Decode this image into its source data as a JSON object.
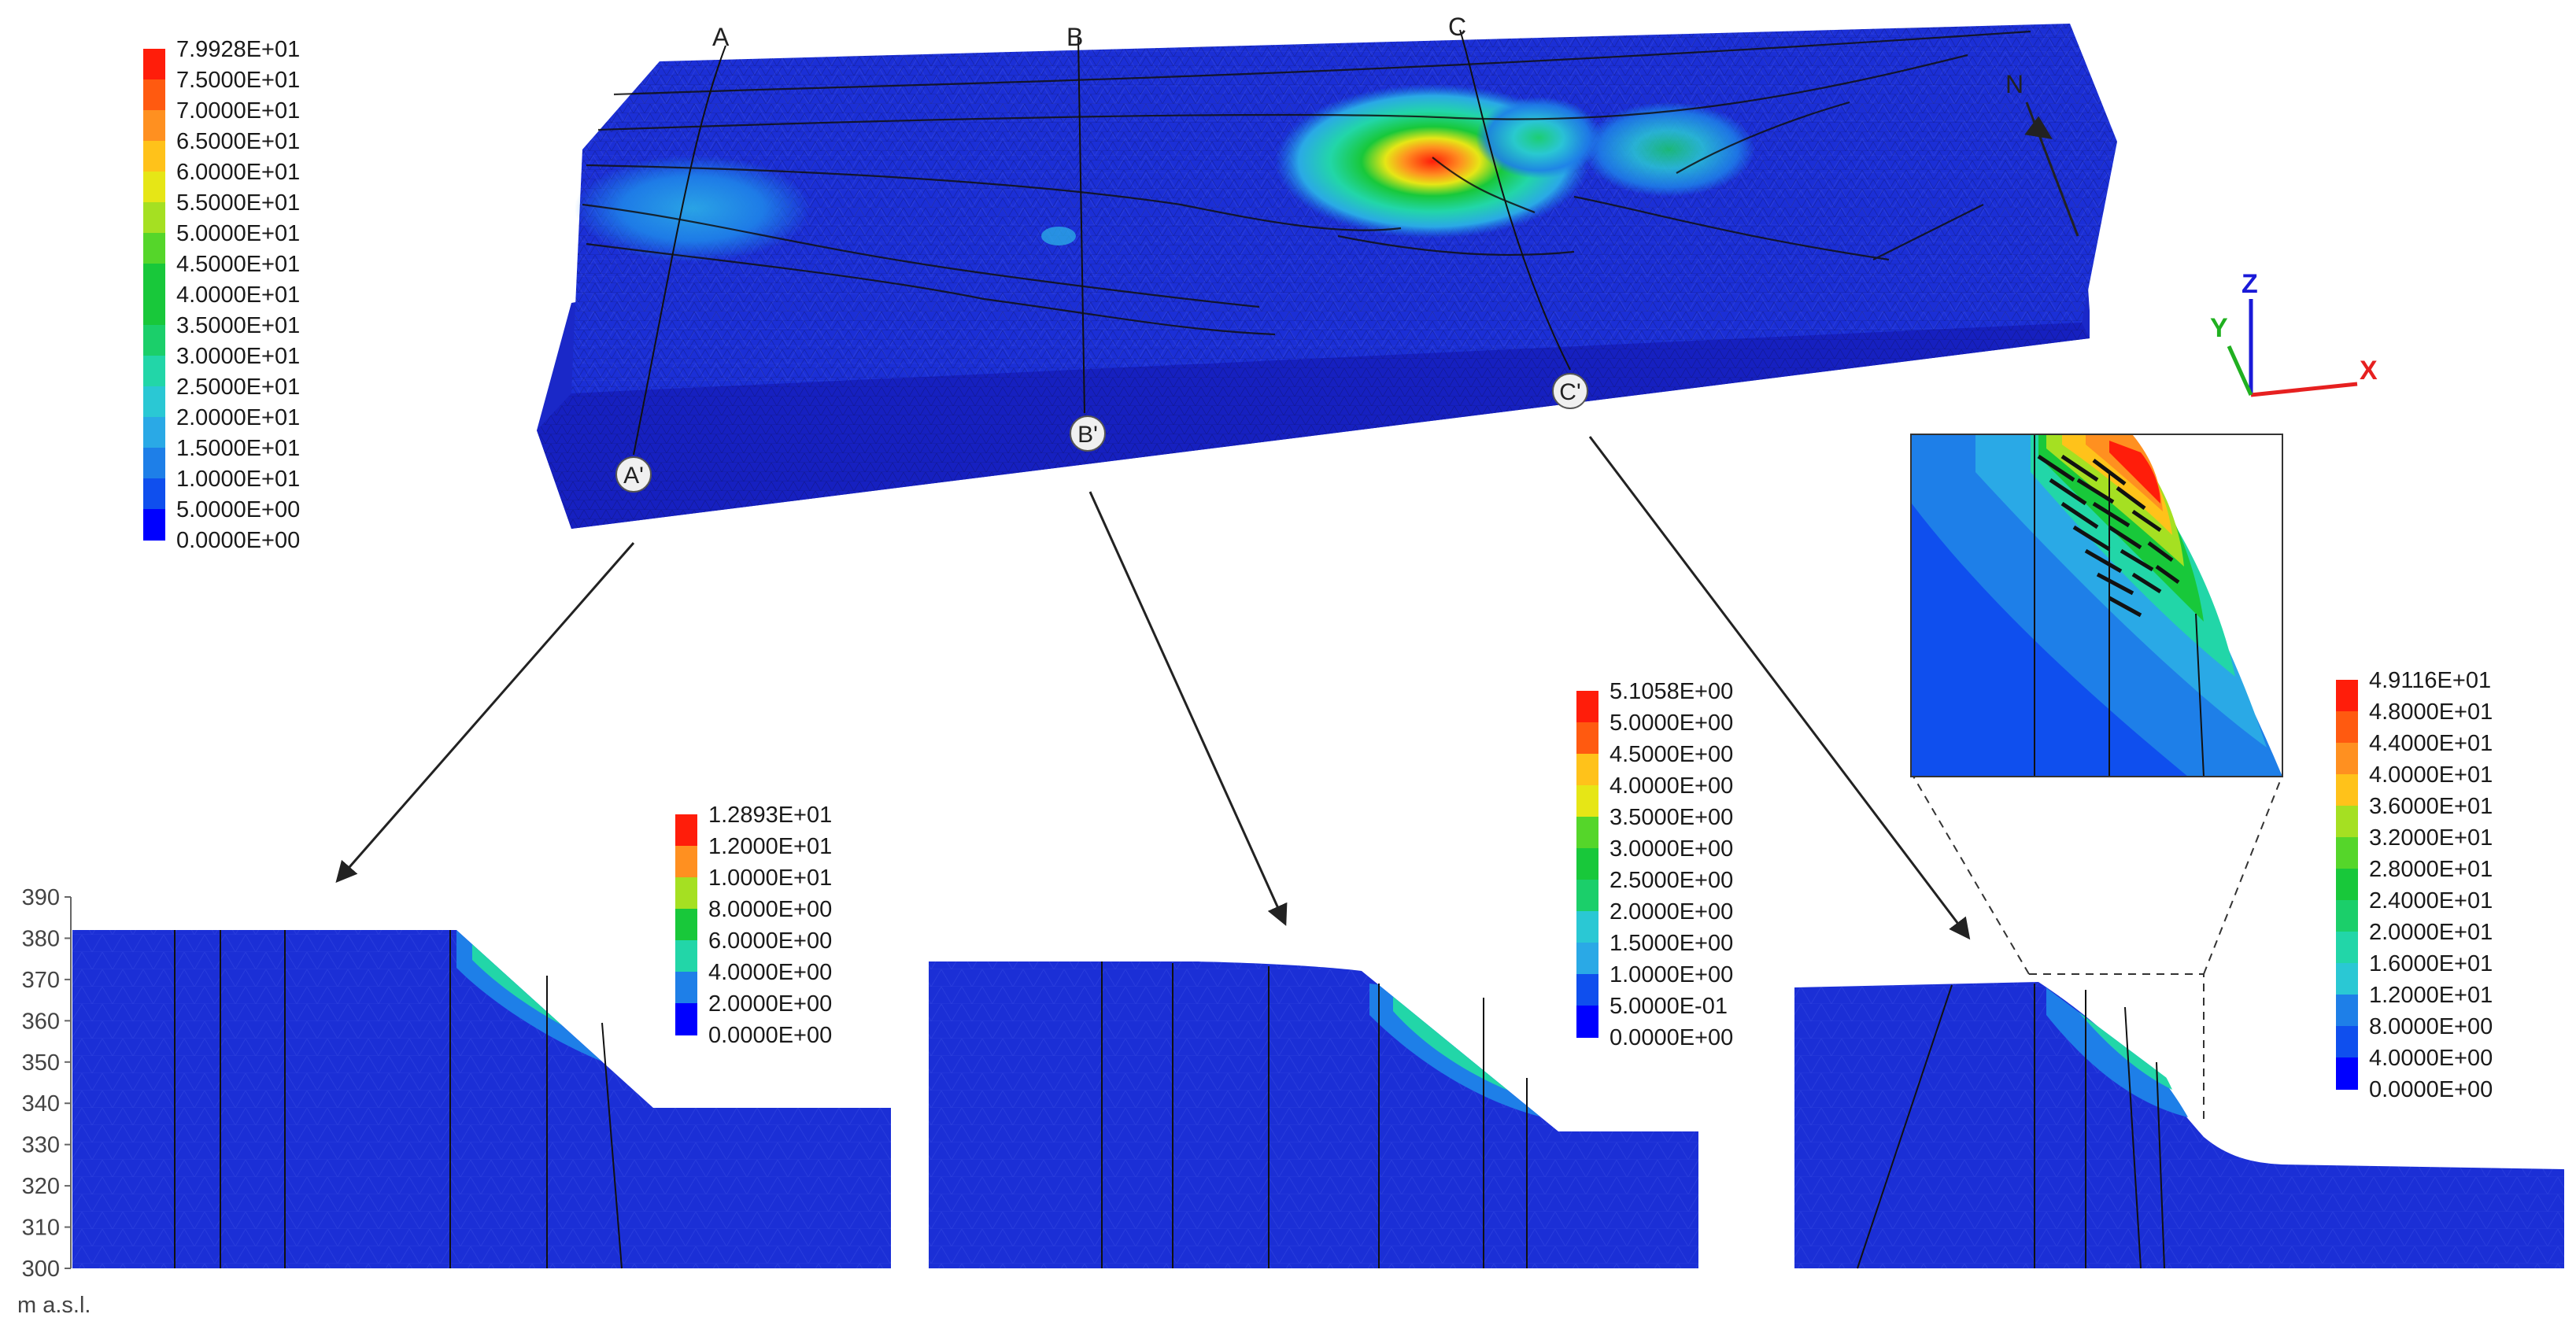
{
  "palette": {
    "levels": [
      "#0000ff",
      "#0f4fee",
      "#1e7fe8",
      "#2aa9e6",
      "#2ac8d4",
      "#22d6a8",
      "#1bcf6a",
      "#18c83a",
      "#55d62a",
      "#a5e022",
      "#e6e616",
      "#ffc21a",
      "#ff9020",
      "#ff5a10",
      "#ff1d0a"
    ],
    "mesh_blue": "#1b2fd6",
    "line": "#111111"
  },
  "legends": {
    "top": [
      "7.9928E+01",
      "7.5000E+01",
      "7.0000E+01",
      "6.5000E+01",
      "6.0000E+01",
      "5.5000E+01",
      "5.0000E+01",
      "4.5000E+01",
      "4.0000E+01",
      "3.5000E+01",
      "3.0000E+01",
      "2.5000E+01",
      "2.0000E+01",
      "1.5000E+01",
      "1.0000E+01",
      "5.0000E+00",
      "0.0000E+00"
    ],
    "a": [
      "1.2893E+01",
      "1.2000E+01",
      "1.0000E+01",
      "8.0000E+00",
      "6.0000E+00",
      "4.0000E+00",
      "2.0000E+00",
      "0.0000E+00"
    ],
    "b": [
      "5.1058E+00",
      "5.0000E+00",
      "4.5000E+00",
      "4.0000E+00",
      "3.5000E+00",
      "3.0000E+00",
      "2.5000E+00",
      "2.0000E+00",
      "1.5000E+00",
      "1.0000E+00",
      "5.0000E-01",
      "0.0000E+00"
    ],
    "c": [
      "4.9116E+01",
      "4.8000E+01",
      "4.4000E+01",
      "4.0000E+01",
      "3.6000E+01",
      "3.2000E+01",
      "2.8000E+01",
      "2.4000E+01",
      "2.0000E+01",
      "1.6000E+01",
      "1.2000E+01",
      "8.0000E+00",
      "4.0000E+00",
      "0.0000E+00"
    ]
  },
  "section_labels": {
    "a": "A",
    "a_prime": "A'",
    "b": "B",
    "b_prime": "B'",
    "c": "C",
    "c_prime": "C'"
  },
  "axes": {
    "x": "X",
    "y": "Y",
    "z": "Z",
    "north": "N"
  },
  "elevation_axis": {
    "ticks": [
      "390",
      "380",
      "370",
      "360",
      "350",
      "340",
      "330",
      "320",
      "310",
      "300"
    ],
    "unit": "m a.s.l."
  }
}
